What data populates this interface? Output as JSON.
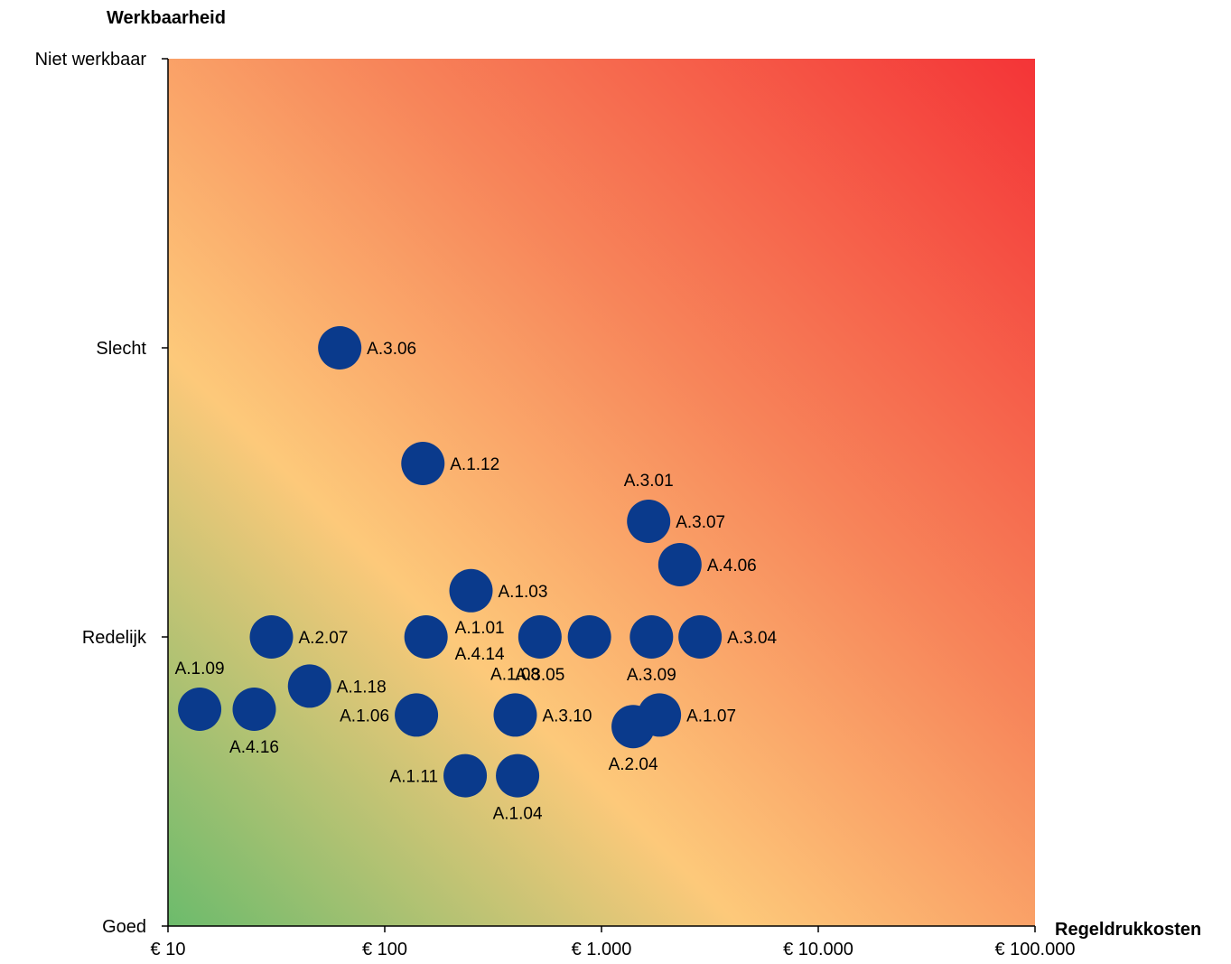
{
  "chart_data": {
    "type": "scatter",
    "ylabel": "Werkbaarheid",
    "xlabel": "Regeldrukkosten",
    "x_scale": "log",
    "xlim": [
      10,
      100000
    ],
    "ylim": [
      0,
      3
    ],
    "x_ticks": [
      {
        "value": 10,
        "label": "€ 10"
      },
      {
        "value": 100,
        "label": "€ 100"
      },
      {
        "value": 1000,
        "label": "€ 1.000"
      },
      {
        "value": 10000,
        "label": "€ 10.000"
      },
      {
        "value": 100000,
        "label": "€ 100.000"
      }
    ],
    "y_ticks": [
      {
        "value": 0,
        "label": "Goed"
      },
      {
        "value": 1,
        "label": "Redelijk"
      },
      {
        "value": 2,
        "label": "Slecht"
      },
      {
        "value": 3,
        "label": "Niet werkbaar"
      }
    ],
    "grid": false,
    "legend": "none",
    "background": "diagonal gradient from green (bottom-left) through yellow-orange to red (top-right)",
    "colors": {
      "marker": "#0a3a8c",
      "bg_green": "#6cbb6c",
      "bg_yellow": "#fdc97a",
      "bg_orange": "#f7855a",
      "bg_red": "#f43437"
    },
    "points": [
      {
        "label": "A.3.06",
        "x": 62,
        "y": 2.0,
        "label_pos": "right"
      },
      {
        "label": "A.1.12",
        "x": 150,
        "y": 1.6,
        "label_pos": "right"
      },
      {
        "label": "A.3.01",
        "x": 1650,
        "y": 1.4,
        "label_pos": "above"
      },
      {
        "label": "A.3.07",
        "x": 1650,
        "y": 1.4,
        "label_pos": "right"
      },
      {
        "label": "A.4.06",
        "x": 2300,
        "y": 1.25,
        "label_pos": "right"
      },
      {
        "label": "A.1.03",
        "x": 250,
        "y": 1.16,
        "label_pos": "right"
      },
      {
        "label": "A.2.07",
        "x": 30,
        "y": 1.0,
        "label_pos": "right"
      },
      {
        "label": "A.1.01",
        "x": 155,
        "y": 1.0,
        "label_pos": "upper-right"
      },
      {
        "label": "A.4.14",
        "x": 155,
        "y": 1.0,
        "label_pos": "lower-right"
      },
      {
        "label": "A.3.05",
        "x": 520,
        "y": 1.0,
        "label_pos": "below"
      },
      {
        "label": "A.3.05",
        "x": 880,
        "y": 1.0,
        "label_pos": "none"
      },
      {
        "label": "A.3.09",
        "x": 1700,
        "y": 1.0,
        "label_pos": "below"
      },
      {
        "label": "A.3.04",
        "x": 2850,
        "y": 1.0,
        "label_pos": "right"
      },
      {
        "label": "A.1.18",
        "x": 45,
        "y": 0.83,
        "label_pos": "right"
      },
      {
        "label": "A.1.09",
        "x": 14,
        "y": 0.75,
        "label_pos": "upper-left"
      },
      {
        "label": "A.4.16",
        "x": 25,
        "y": 0.75,
        "label_pos": "below"
      },
      {
        "label": "A.1.06",
        "x": 140,
        "y": 0.73,
        "label_pos": "left"
      },
      {
        "label": "A.1.08",
        "x": 400,
        "y": 0.73,
        "label_pos": "above"
      },
      {
        "label": "A.3.10",
        "x": 400,
        "y": 0.73,
        "label_pos": "right"
      },
      {
        "label": "A.1.07",
        "x": 1850,
        "y": 0.73,
        "label_pos": "right"
      },
      {
        "label": "A.2.04",
        "x": 1400,
        "y": 0.69,
        "label_pos": "below"
      },
      {
        "label": "A.1.11",
        "x": 235,
        "y": 0.52,
        "label_pos": "left"
      },
      {
        "label": "A.1.04",
        "x": 410,
        "y": 0.52,
        "label_pos": "below"
      }
    ]
  }
}
